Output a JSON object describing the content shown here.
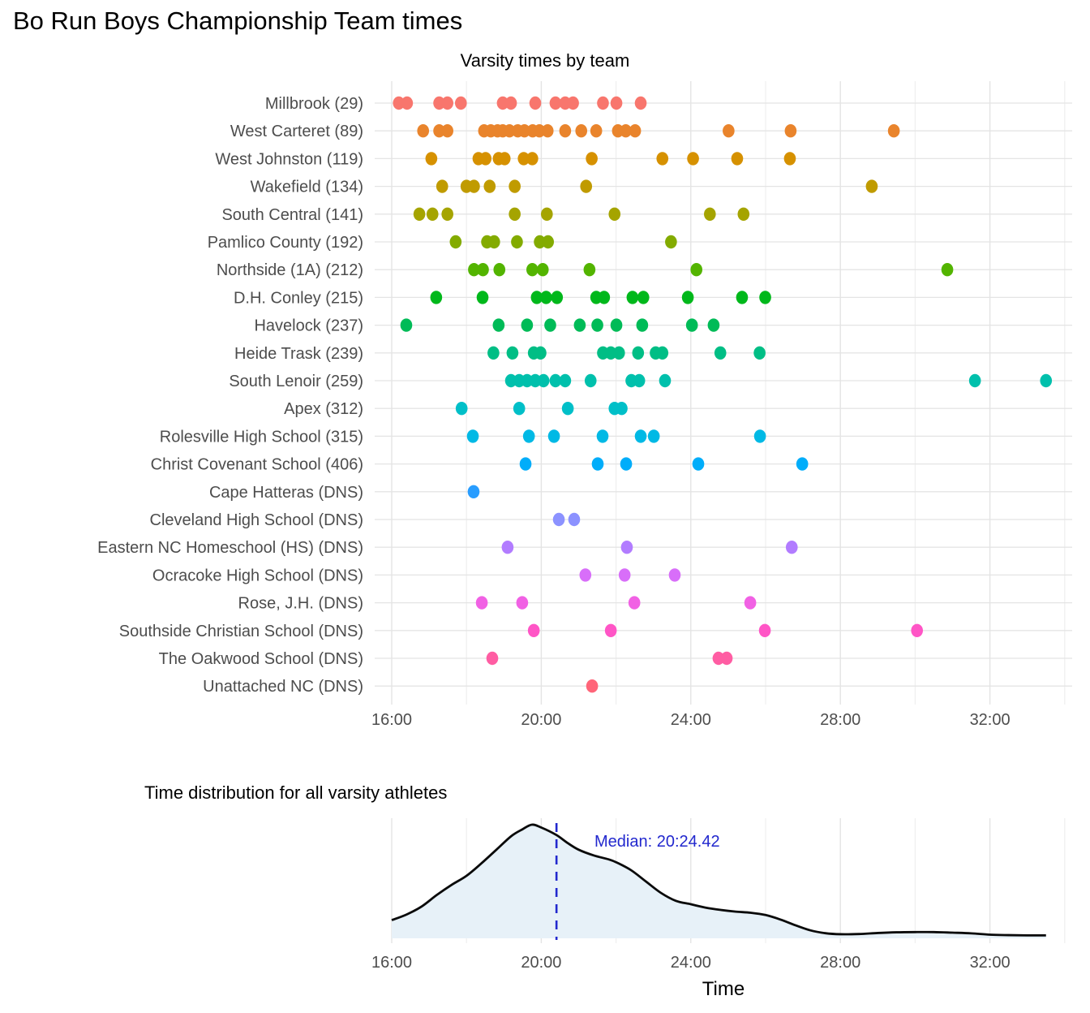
{
  "title": "Bo Run Boys Championship Team times",
  "chart_data": [
    {
      "type": "scatter",
      "variant": "strip-dotplot",
      "title": "Varsity times by team",
      "x_axis": {
        "units": "race time, decimal minutes",
        "range": [
          15.5,
          34.2
        ],
        "gridline_every_minutes": 2,
        "ticks": [
          {
            "t": 16,
            "label": "16:00"
          },
          {
            "t": 20,
            "label": "20:00"
          },
          {
            "t": 24,
            "label": "24:00"
          },
          {
            "t": 28,
            "label": "28:00"
          },
          {
            "t": 32,
            "label": "32:00"
          }
        ]
      },
      "teams": [
        {
          "label": "Millbrook (29)",
          "color": "#F8766D",
          "times": [
            16.19,
            16.41,
            17.27,
            17.49,
            17.85,
            18.97,
            19.19,
            19.84,
            20.38,
            20.64,
            20.85,
            21.65,
            22.01,
            22.66
          ]
        },
        {
          "label": "West Carteret (89)",
          "color": "#E9842C",
          "times": [
            16.84,
            17.27,
            17.49,
            18.47,
            18.65,
            18.83,
            18.97,
            19.15,
            19.37,
            19.55,
            19.77,
            19.95,
            20.17,
            20.64,
            21.07,
            21.47,
            22.05,
            22.26,
            22.51,
            25.01,
            26.67,
            29.43
          ]
        },
        {
          "label": "West Johnston (119)",
          "color": "#D69100",
          "times": [
            17.06,
            18.32,
            18.51,
            18.86,
            19.02,
            19.53,
            19.76,
            21.35,
            23.24,
            24.06,
            25.24,
            26.65
          ]
        },
        {
          "label": "Wakefield (134)",
          "color": "#C09B00",
          "times": [
            17.35,
            18.0,
            18.2,
            18.62,
            19.29,
            21.2,
            28.84
          ]
        },
        {
          "label": "South Central (141)",
          "color": "#A5A400",
          "times": [
            16.74,
            17.09,
            17.49,
            19.29,
            20.15,
            21.96,
            24.51,
            25.41
          ]
        },
        {
          "label": "Pamlico County (192)",
          "color": "#83AB00",
          "times": [
            17.71,
            18.55,
            18.74,
            19.35,
            19.96,
            20.18,
            23.47
          ]
        },
        {
          "label": "Northside (1A) (212)",
          "color": "#53B400",
          "times": [
            18.2,
            18.44,
            18.88,
            19.76,
            20.04,
            21.29,
            24.15,
            30.86
          ]
        },
        {
          "label": "D.H. Conley (215)",
          "color": "#00B81B",
          "times": [
            17.19,
            18.43,
            19.88,
            20.13,
            20.42,
            21.47,
            21.68,
            22.44,
            22.73,
            23.92,
            25.37,
            25.99
          ]
        },
        {
          "label": "Havelock (237)",
          "color": "#00BB57",
          "times": [
            16.39,
            18.86,
            19.62,
            20.24,
            21.03,
            21.5,
            22.01,
            22.7,
            24.03,
            24.61
          ]
        },
        {
          "label": "Heide Trask (239)",
          "color": "#00BE85",
          "times": [
            18.72,
            19.23,
            19.8,
            19.98,
            21.65,
            21.86,
            22.08,
            22.59,
            23.06,
            23.24,
            24.79,
            25.84
          ]
        },
        {
          "label": "South Lenoir (259)",
          "color": "#00C0AC",
          "times": [
            19.19,
            19.41,
            19.62,
            19.84,
            20.06,
            20.38,
            20.64,
            21.32,
            22.41,
            22.62,
            23.31,
            31.6,
            33.5
          ]
        },
        {
          "label": "Apex (312)",
          "color": "#00BFC8",
          "times": [
            17.87,
            19.41,
            20.71,
            21.96,
            22.15
          ]
        },
        {
          "label": "Rolesville High School (315)",
          "color": "#00B9E5",
          "times": [
            18.17,
            19.67,
            20.34,
            21.64,
            22.66,
            23.01,
            25.85
          ]
        },
        {
          "label": "Christ Covenant School (406)",
          "color": "#00ADFA",
          "times": [
            19.58,
            21.51,
            22.27,
            24.2,
            26.98
          ]
        },
        {
          "label": "Cape Hatteras (DNS)",
          "color": "#289DFF",
          "times": [
            18.19
          ]
        },
        {
          "label": "Cleveland High School (DNS)",
          "color": "#8C92FF",
          "times": [
            20.47,
            20.88
          ]
        },
        {
          "label": "Eastern NC Homeschool (HS) (DNS)",
          "color": "#B27CFF",
          "times": [
            19.1,
            22.29,
            26.7
          ]
        },
        {
          "label": "Ocracoke High School (DNS)",
          "color": "#D86EF9",
          "times": [
            21.18,
            22.23,
            23.57
          ]
        },
        {
          "label": "Rose, J.H. (DNS)",
          "color": "#F161E4",
          "times": [
            18.41,
            19.49,
            22.49,
            25.59
          ]
        },
        {
          "label": "Southside Christian School (DNS)",
          "color": "#FF55C6",
          "times": [
            19.8,
            21.86,
            25.98,
            30.05
          ]
        },
        {
          "label": "The Oakwood School (DNS)",
          "color": "#FF5DA3",
          "times": [
            18.69,
            24.74,
            24.96
          ]
        },
        {
          "label": "Unattached NC (DNS)",
          "color": "#FF6579",
          "times": [
            21.36
          ]
        }
      ]
    },
    {
      "type": "area",
      "variant": "density",
      "title": "Time distribution for all varsity athletes",
      "xlabel": "Time",
      "x_axis": {
        "units": "race time, decimal minutes",
        "range": [
          15.5,
          34.2
        ],
        "gridline_every_minutes": 2,
        "ticks": [
          {
            "t": 16,
            "label": "16:00"
          },
          {
            "t": 20,
            "label": "20:00"
          },
          {
            "t": 24,
            "label": "24:00"
          },
          {
            "t": 28,
            "label": "28:00"
          },
          {
            "t": 32,
            "label": "32:00"
          }
        ]
      },
      "median": {
        "value_minutes": 20.407,
        "label": "Median: 20:24.42",
        "color": "#2228CE",
        "line_style": "dashed"
      },
      "curve": {
        "x_minutes": [
          16.0,
          16.4,
          16.8,
          17.2,
          17.6,
          18.0,
          18.4,
          18.8,
          19.2,
          19.5,
          19.75,
          20.0,
          20.4,
          20.7,
          21.0,
          21.4,
          21.8,
          22.0,
          22.4,
          22.8,
          23.2,
          23.6,
          24.0,
          24.4,
          24.8,
          25.2,
          25.6,
          26.0,
          26.4,
          26.8,
          27.2,
          27.6,
          28.0,
          28.5,
          29.0,
          29.5,
          30.0,
          30.5,
          31.0,
          31.5,
          32.0,
          32.5,
          33.0,
          33.5
        ],
        "density_relative": [
          0.16,
          0.21,
          0.28,
          0.38,
          0.47,
          0.55,
          0.66,
          0.78,
          0.9,
          0.96,
          1.0,
          0.975,
          0.91,
          0.84,
          0.78,
          0.73,
          0.695,
          0.67,
          0.6,
          0.5,
          0.4,
          0.33,
          0.3,
          0.27,
          0.25,
          0.235,
          0.225,
          0.205,
          0.165,
          0.115,
          0.07,
          0.045,
          0.036,
          0.038,
          0.047,
          0.053,
          0.055,
          0.055,
          0.05,
          0.044,
          0.032,
          0.028,
          0.026,
          0.026
        ]
      },
      "fill_color": "#E7F1F8",
      "line_color": "#0A0A0A"
    }
  ],
  "styles": {
    "grid_major": "#E4E4E4",
    "grid_minor": "#EFEFEF",
    "axis_text": "#4d4d4d"
  }
}
